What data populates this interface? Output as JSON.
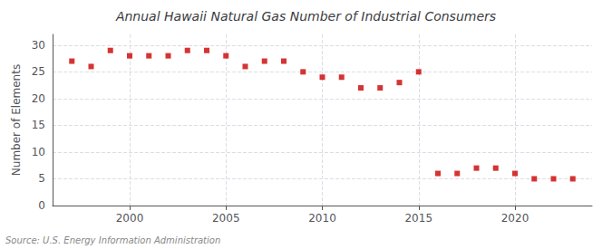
{
  "chart_data": {
    "type": "scatter",
    "title": "Annual Hawaii Natural Gas Number of Industrial Consumers",
    "ylabel": "Number of Elements",
    "annotation": "Source: U.S. Energy Information Administration",
    "x": [
      1997,
      1998,
      1999,
      2000,
      2001,
      2002,
      2003,
      2004,
      2005,
      2006,
      2007,
      2008,
      2009,
      2010,
      2011,
      2012,
      2013,
      2014,
      2015,
      2016,
      2017,
      2018,
      2019,
      2020,
      2021,
      2022,
      2023
    ],
    "values": [
      27,
      26,
      29,
      28,
      28,
      28,
      29,
      29,
      28,
      26,
      27,
      27,
      25,
      24,
      24,
      22,
      22,
      23,
      25,
      6,
      6,
      7,
      7,
      6,
      5,
      5,
      5
    ],
    "color": "#cc0000",
    "marker": "square",
    "xlim": [
      1996,
      2024
    ],
    "xticks": [
      2000,
      2005,
      2010,
      2015,
      2020
    ],
    "ylim": [
      0,
      32
    ],
    "yticks": [
      0,
      5,
      10,
      15,
      20,
      25,
      30
    ],
    "grid": true
  }
}
